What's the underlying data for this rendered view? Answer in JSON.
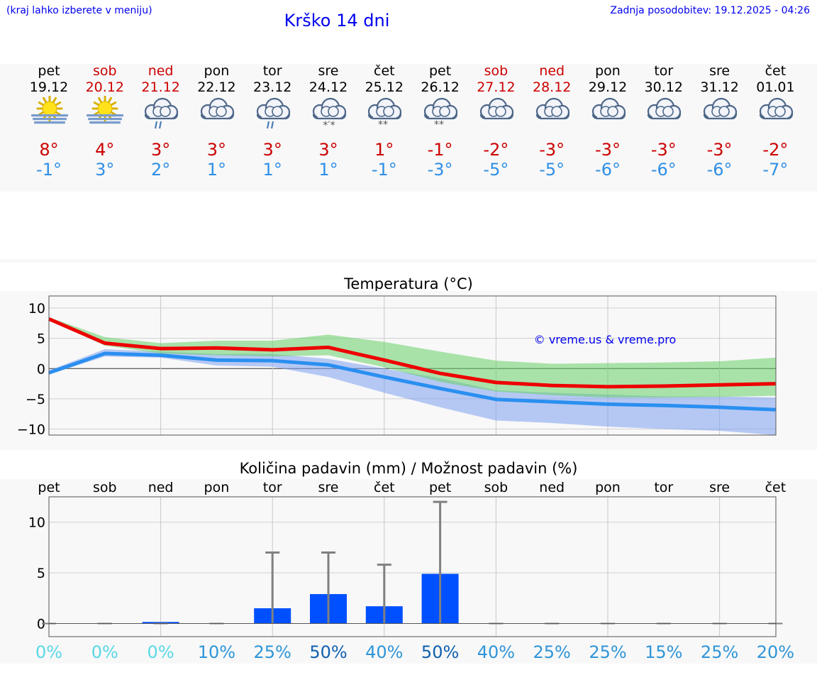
{
  "header": {
    "hint": "(kraj lahko izberete v meniju)",
    "title": "Krško 14 dni",
    "updated": "Zadnja posodobitev: 19.12.2025 - 04:26"
  },
  "days": [
    {
      "name": "pet",
      "date": "19.12",
      "weekend": false,
      "icon": "sun-fog",
      "max": "8°",
      "min": "-1°"
    },
    {
      "name": "sob",
      "date": "20.12",
      "weekend": true,
      "icon": "sun-fog",
      "max": "4°",
      "min": "3°"
    },
    {
      "name": "ned",
      "date": "21.12",
      "weekend": true,
      "icon": "cloud-rain",
      "max": "3°",
      "min": "2°"
    },
    {
      "name": "pon",
      "date": "22.12",
      "weekend": false,
      "icon": "cloud",
      "max": "3°",
      "min": "1°"
    },
    {
      "name": "tor",
      "date": "23.12",
      "weekend": false,
      "icon": "cloud-rain",
      "max": "3°",
      "min": "1°"
    },
    {
      "name": "sre",
      "date": "24.12",
      "weekend": false,
      "icon": "cloud-sleet",
      "max": "3°",
      "min": "1°"
    },
    {
      "name": "čet",
      "date": "25.12",
      "weekend": false,
      "icon": "cloud-snow",
      "max": "1°",
      "min": "-1°"
    },
    {
      "name": "pet",
      "date": "26.12",
      "weekend": false,
      "icon": "cloud-snow",
      "max": "-1°",
      "min": "-3°"
    },
    {
      "name": "sob",
      "date": "27.12",
      "weekend": true,
      "icon": "cloud",
      "max": "-2°",
      "min": "-5°"
    },
    {
      "name": "ned",
      "date": "28.12",
      "weekend": true,
      "icon": "cloud",
      "max": "-3°",
      "min": "-5°"
    },
    {
      "name": "pon",
      "date": "29.12",
      "weekend": false,
      "icon": "cloud",
      "max": "-3°",
      "min": "-6°"
    },
    {
      "name": "tor",
      "date": "30.12",
      "weekend": false,
      "icon": "cloud",
      "max": "-3°",
      "min": "-6°"
    },
    {
      "name": "sre",
      "date": "31.12",
      "weekend": false,
      "icon": "cloud",
      "max": "-3°",
      "min": "-6°"
    },
    {
      "name": "čet",
      "date": "01.01",
      "weekend": false,
      "icon": "cloud",
      "max": "-2°",
      "min": "-7°"
    }
  ],
  "colors": {
    "weekend": "#cc0000",
    "weekday": "#000000",
    "max": "#cc0000",
    "min": "#2f8fe6",
    "maxLine": "#ee0000",
    "minLine": "#2a8ff0",
    "maxBand": "#66d066",
    "minBand": "#7da0f0",
    "bar": "#0050ff",
    "whisker": "#808080"
  },
  "chart_data": [
    {
      "type": "line",
      "title": "Temperatura (°C)",
      "ylim": [
        -11,
        12
      ],
      "yticks": [
        10,
        5,
        0,
        -5,
        -10
      ],
      "ytick_labels": [
        "10",
        "5",
        "0",
        "−5",
        "−10"
      ],
      "x": [
        0,
        1,
        2,
        3,
        4,
        5,
        6,
        7,
        8,
        9,
        10,
        11,
        12,
        13
      ],
      "series": [
        {
          "name": "max",
          "values": [
            8.2,
            4.2,
            3.3,
            3.4,
            3.1,
            3.5,
            1.4,
            -0.8,
            -2.3,
            -2.8,
            -3.0,
            -2.9,
            -2.7,
            -2.5
          ],
          "band_low": [
            8.0,
            3.8,
            2.5,
            2.2,
            2.0,
            2.2,
            0.2,
            -2.2,
            -3.8,
            -4.4,
            -4.8,
            -4.8,
            -4.7,
            -4.5
          ],
          "band_high": [
            8.5,
            5.2,
            4.2,
            4.6,
            4.6,
            5.6,
            4.4,
            2.8,
            1.3,
            0.8,
            0.9,
            1.0,
            1.2,
            1.8
          ]
        },
        {
          "name": "min",
          "values": [
            -0.7,
            2.5,
            2.2,
            1.4,
            1.3,
            0.6,
            -1.4,
            -3.3,
            -5.1,
            -5.5,
            -5.9,
            -6.1,
            -6.4,
            -6.8
          ],
          "band_low": [
            -1.0,
            2.0,
            1.8,
            0.5,
            0.3,
            -1.4,
            -4.0,
            -6.4,
            -8.6,
            -9.0,
            -9.6,
            -10.0,
            -10.3,
            -11.0
          ],
          "band_high": [
            -0.3,
            3.2,
            2.8,
            2.4,
            2.4,
            1.6,
            0.0,
            -1.6,
            -3.6,
            -4.0,
            -4.3,
            -4.6,
            -4.6,
            -4.8
          ]
        }
      ],
      "annotation": "© vreme.us & vreme.pro"
    },
    {
      "type": "bar",
      "title": "Količina padavin (mm) / Možnost padavin (%)",
      "categories": [
        "pet",
        "sob",
        "ned",
        "pon",
        "tor",
        "sre",
        "čet",
        "pet",
        "sob",
        "ned",
        "pon",
        "tor",
        "sre",
        "čet"
      ],
      "ylim": [
        -1.3,
        12.5
      ],
      "yticks": [
        10,
        5,
        0
      ],
      "ytick_labels": [
        "10",
        "5",
        "0"
      ],
      "values": [
        0,
        0,
        0.15,
        0,
        1.5,
        2.9,
        1.7,
        4.9,
        0,
        0,
        0,
        0,
        0,
        0
      ],
      "error_high": [
        0,
        0,
        0.2,
        0,
        7.0,
        7.0,
        5.8,
        12.0,
        0,
        0,
        0,
        0.1,
        0,
        0
      ],
      "probability": [
        "0%",
        "0%",
        "0%",
        "10%",
        "25%",
        "50%",
        "40%",
        "50%",
        "40%",
        "25%",
        "25%",
        "15%",
        "25%",
        "20%"
      ],
      "probability_colors": [
        "#5ad8e6",
        "#5ad8e6",
        "#5ad8e6",
        "#2f95d8",
        "#2f95d8",
        "#1060b0",
        "#2f95d8",
        "#1060b0",
        "#2f95d8",
        "#2f95d8",
        "#2f95d8",
        "#2f95d8",
        "#2f95d8",
        "#2f95d8"
      ]
    }
  ]
}
